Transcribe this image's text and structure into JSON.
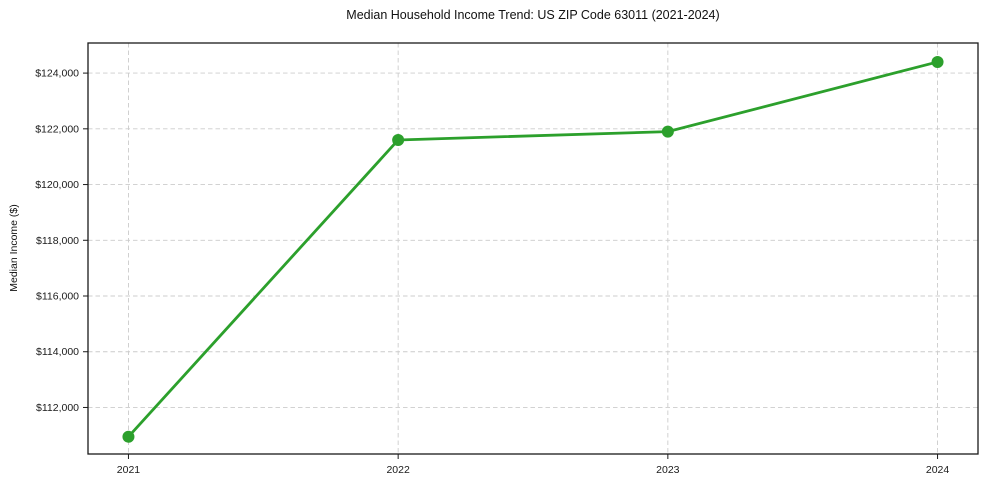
{
  "chart_data": {
    "type": "line",
    "title": "Median Household Income Trend: US ZIP Code 63011 (2021-2024)",
    "xlabel": "",
    "ylabel": "Median Income ($)",
    "series": [
      {
        "name": "Median Household Income",
        "x": [
          2021,
          2022,
          2023,
          2024
        ],
        "values": [
          110950,
          121600,
          121900,
          124400
        ]
      }
    ],
    "xticks": [
      {
        "value": 2021,
        "label": "2021"
      },
      {
        "value": 2022,
        "label": "2022"
      },
      {
        "value": 2023,
        "label": "2023"
      },
      {
        "value": 2024,
        "label": "2024"
      }
    ],
    "yticks": [
      {
        "value": 112000,
        "label": "$112,000"
      },
      {
        "value": 114000,
        "label": "$114,000"
      },
      {
        "value": 116000,
        "label": "$116,000"
      },
      {
        "value": 118000,
        "label": "$118,000"
      },
      {
        "value": 120000,
        "label": "$120,000"
      },
      {
        "value": 122000,
        "label": "$122,000"
      },
      {
        "value": 124000,
        "label": "$124,000"
      }
    ],
    "xlim": [
      2020.85,
      2024.15
    ],
    "ylim": [
      110330,
      125080
    ],
    "grid": "dashed",
    "legend": "none",
    "line_color": "#2ca02c",
    "marker": "circle",
    "marker_color": "#2ca02c",
    "grid_color": "#cccccc",
    "frame_color": "#1a1a1a",
    "background_color": "#ffffff"
  }
}
